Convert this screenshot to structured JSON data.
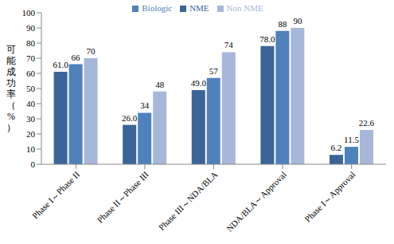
{
  "chart_data": {
    "type": "bar",
    "y_label": "可能成功率（%）",
    "categories": [
      "Phase I～Phase II",
      "Phase II～Phase III",
      "Phase III～NDA/BLA",
      "NDA/BLA～Approval",
      "Phase I～Approval"
    ],
    "series": [
      {
        "name": "NME",
        "color": "#3b6598",
        "values": [
          61.0,
          26.0,
          49.0,
          78.0,
          6.2
        ],
        "value_labels": [
          "61.0",
          "26.0",
          "49.0",
          "78.0",
          "6.2"
        ]
      },
      {
        "name": "Biologic",
        "color": "#4f81bd",
        "values": [
          66,
          34,
          57,
          88,
          11.5
        ]
      },
      {
        "name": "Non NME",
        "color": "#a7b7d9",
        "values": [
          70,
          48,
          74,
          90,
          22.6
        ]
      }
    ],
    "ylim": [
      0,
      100
    ],
    "yticks": [
      0,
      10,
      20,
      30,
      40,
      50,
      60,
      70,
      80,
      90,
      100
    ],
    "grid": false,
    "legend": "top",
    "data_labels": true
  }
}
